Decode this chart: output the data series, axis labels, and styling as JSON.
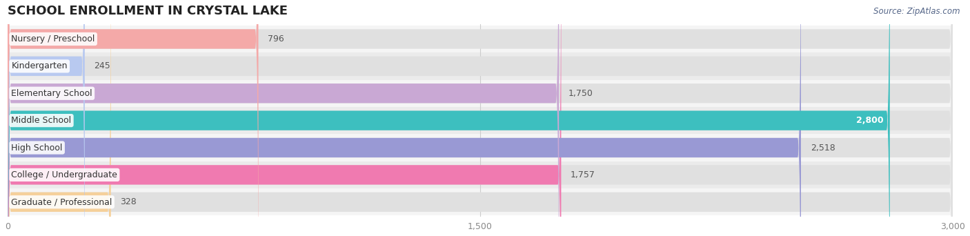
{
  "title": "SCHOOL ENROLLMENT IN CRYSTAL LAKE",
  "source": "Source: ZipAtlas.com",
  "categories": [
    "Nursery / Preschool",
    "Kindergarten",
    "Elementary School",
    "Middle School",
    "High School",
    "College / Undergraduate",
    "Graduate / Professional"
  ],
  "values": [
    796,
    245,
    1750,
    2800,
    2518,
    1757,
    328
  ],
  "bar_colors": [
    "#f4a9a8",
    "#b8c9f0",
    "#c9a8d4",
    "#3dbfbf",
    "#9999d4",
    "#f07ab0",
    "#f5d09a"
  ],
  "xlim": [
    0,
    3000
  ],
  "xticks": [
    0,
    1500,
    3000
  ],
  "xticklabels": [
    "0",
    "1,500",
    "3,000"
  ],
  "value_labels": [
    "796",
    "245",
    "1,750",
    "2,800",
    "2,518",
    "1,757",
    "328"
  ],
  "title_fontsize": 13,
  "label_fontsize": 9,
  "value_fontsize": 9,
  "source_fontsize": 8.5,
  "background_color": "#ffffff"
}
